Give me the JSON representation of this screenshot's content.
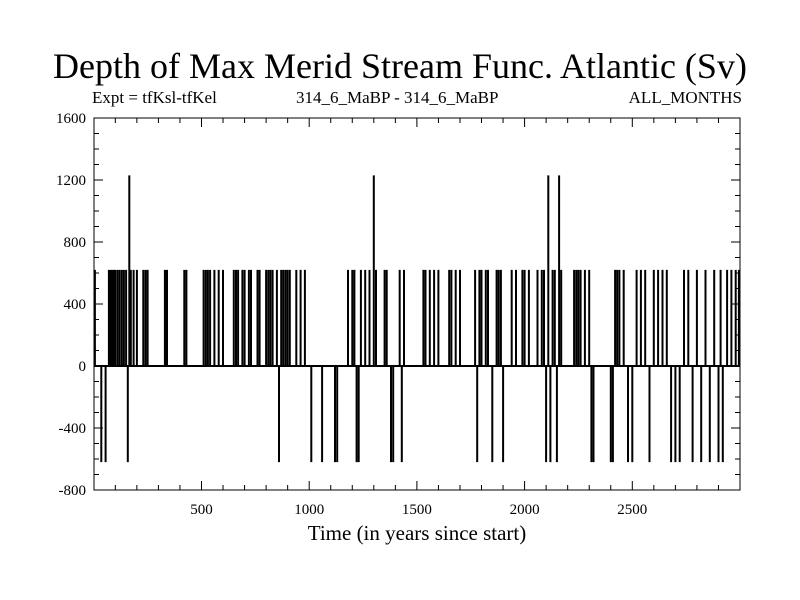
{
  "chart_data": {
    "type": "line",
    "title": "Depth of Max Merid Stream Func. Atlantic (Sv)",
    "subtitle_left": "Expt = tfKsl-tfKel",
    "subtitle_center": "314_6_MaBP - 314_6_MaBP",
    "subtitle_right": "ALL_MONTHS",
    "xlabel": "Time (in years since start)",
    "ylabel": "",
    "xlim": [
      1,
      3000
    ],
    "ylim": [
      -800,
      1600
    ],
    "x_ticks": [
      500,
      1000,
      1500,
      2000,
      2500
    ],
    "y_ticks": [
      -800,
      -400,
      0,
      400,
      800,
      1200,
      1600
    ],
    "series": [
      {
        "values_note": "",
        "spikes": [
          {
            "x": 5,
            "y": 620
          },
          {
            "x": 35,
            "y": -620
          },
          {
            "x": 55,
            "y": -620
          },
          {
            "x": 70,
            "y": 620
          },
          {
            "x": 78,
            "y": 620
          },
          {
            "x": 85,
            "y": 620
          },
          {
            "x": 92,
            "y": 620
          },
          {
            "x": 100,
            "y": 620
          },
          {
            "x": 110,
            "y": 620
          },
          {
            "x": 120,
            "y": 620
          },
          {
            "x": 130,
            "y": 620
          },
          {
            "x": 140,
            "y": 620
          },
          {
            "x": 150,
            "y": 620
          },
          {
            "x": 158,
            "y": -620
          },
          {
            "x": 165,
            "y": 1230
          },
          {
            "x": 172,
            "y": 620
          },
          {
            "x": 185,
            "y": 620
          },
          {
            "x": 200,
            "y": 620
          },
          {
            "x": 230,
            "y": 620
          },
          {
            "x": 240,
            "y": 620
          },
          {
            "x": 250,
            "y": 620
          },
          {
            "x": 330,
            "y": 620
          },
          {
            "x": 335,
            "y": 620
          },
          {
            "x": 340,
            "y": 620
          },
          {
            "x": 420,
            "y": 620
          },
          {
            "x": 430,
            "y": 620
          },
          {
            "x": 510,
            "y": 620
          },
          {
            "x": 520,
            "y": 620
          },
          {
            "x": 530,
            "y": 620
          },
          {
            "x": 540,
            "y": 620
          },
          {
            "x": 560,
            "y": 620
          },
          {
            "x": 580,
            "y": 620
          },
          {
            "x": 600,
            "y": 620
          },
          {
            "x": 650,
            "y": 620
          },
          {
            "x": 660,
            "y": 620
          },
          {
            "x": 670,
            "y": 620
          },
          {
            "x": 690,
            "y": 620
          },
          {
            "x": 700,
            "y": 620
          },
          {
            "x": 720,
            "y": 620
          },
          {
            "x": 730,
            "y": 620
          },
          {
            "x": 760,
            "y": 620
          },
          {
            "x": 770,
            "y": 620
          },
          {
            "x": 800,
            "y": 620
          },
          {
            "x": 810,
            "y": 620
          },
          {
            "x": 820,
            "y": 620
          },
          {
            "x": 830,
            "y": 620
          },
          {
            "x": 850,
            "y": 620
          },
          {
            "x": 860,
            "y": -620
          },
          {
            "x": 870,
            "y": 620
          },
          {
            "x": 880,
            "y": 620
          },
          {
            "x": 890,
            "y": 620
          },
          {
            "x": 900,
            "y": 620
          },
          {
            "x": 910,
            "y": 620
          },
          {
            "x": 940,
            "y": 620
          },
          {
            "x": 960,
            "y": 620
          },
          {
            "x": 980,
            "y": 620
          },
          {
            "x": 1010,
            "y": -620
          },
          {
            "x": 1060,
            "y": -620
          },
          {
            "x": 1120,
            "y": -620
          },
          {
            "x": 1130,
            "y": -620
          },
          {
            "x": 1180,
            "y": 620
          },
          {
            "x": 1200,
            "y": 620
          },
          {
            "x": 1210,
            "y": 620
          },
          {
            "x": 1220,
            "y": -620
          },
          {
            "x": 1230,
            "y": -620
          },
          {
            "x": 1240,
            "y": 620
          },
          {
            "x": 1260,
            "y": 620
          },
          {
            "x": 1280,
            "y": 620
          },
          {
            "x": 1300,
            "y": 1230
          },
          {
            "x": 1310,
            "y": 620
          },
          {
            "x": 1350,
            "y": 620
          },
          {
            "x": 1360,
            "y": 620
          },
          {
            "x": 1380,
            "y": -620
          },
          {
            "x": 1390,
            "y": -620
          },
          {
            "x": 1420,
            "y": 620
          },
          {
            "x": 1430,
            "y": -620
          },
          {
            "x": 1440,
            "y": 620
          },
          {
            "x": 1530,
            "y": 620
          },
          {
            "x": 1540,
            "y": 620
          },
          {
            "x": 1560,
            "y": 620
          },
          {
            "x": 1580,
            "y": 620
          },
          {
            "x": 1600,
            "y": 620
          },
          {
            "x": 1650,
            "y": 620
          },
          {
            "x": 1660,
            "y": 620
          },
          {
            "x": 1680,
            "y": 620
          },
          {
            "x": 1700,
            "y": 620
          },
          {
            "x": 1770,
            "y": 620
          },
          {
            "x": 1780,
            "y": -620
          },
          {
            "x": 1790,
            "y": 620
          },
          {
            "x": 1800,
            "y": 620
          },
          {
            "x": 1820,
            "y": 620
          },
          {
            "x": 1830,
            "y": 620
          },
          {
            "x": 1850,
            "y": -620
          },
          {
            "x": 1870,
            "y": 620
          },
          {
            "x": 1880,
            "y": 620
          },
          {
            "x": 1890,
            "y": 620
          },
          {
            "x": 1900,
            "y": -620
          },
          {
            "x": 1940,
            "y": 620
          },
          {
            "x": 1960,
            "y": 620
          },
          {
            "x": 1990,
            "y": 620
          },
          {
            "x": 2000,
            "y": 620
          },
          {
            "x": 2020,
            "y": 620
          },
          {
            "x": 2060,
            "y": 620
          },
          {
            "x": 2080,
            "y": 620
          },
          {
            "x": 2090,
            "y": 620
          },
          {
            "x": 2100,
            "y": -620
          },
          {
            "x": 2110,
            "y": 1230
          },
          {
            "x": 2120,
            "y": -620
          },
          {
            "x": 2130,
            "y": 620
          },
          {
            "x": 2140,
            "y": 620
          },
          {
            "x": 2150,
            "y": -620
          },
          {
            "x": 2160,
            "y": 1230
          },
          {
            "x": 2170,
            "y": 620
          },
          {
            "x": 2230,
            "y": 620
          },
          {
            "x": 2240,
            "y": 620
          },
          {
            "x": 2250,
            "y": 620
          },
          {
            "x": 2260,
            "y": 620
          },
          {
            "x": 2280,
            "y": 620
          },
          {
            "x": 2300,
            "y": 620
          },
          {
            "x": 2310,
            "y": -620
          },
          {
            "x": 2320,
            "y": -620
          },
          {
            "x": 2400,
            "y": -620
          },
          {
            "x": 2410,
            "y": -620
          },
          {
            "x": 2420,
            "y": 620
          },
          {
            "x": 2430,
            "y": 620
          },
          {
            "x": 2440,
            "y": 620
          },
          {
            "x": 2460,
            "y": 620
          },
          {
            "x": 2480,
            "y": -620
          },
          {
            "x": 2500,
            "y": -620
          },
          {
            "x": 2520,
            "y": 620
          },
          {
            "x": 2540,
            "y": 620
          },
          {
            "x": 2560,
            "y": 620
          },
          {
            "x": 2580,
            "y": -620
          },
          {
            "x": 2600,
            "y": 620
          },
          {
            "x": 2620,
            "y": 620
          },
          {
            "x": 2640,
            "y": 620
          },
          {
            "x": 2660,
            "y": 620
          },
          {
            "x": 2680,
            "y": -620
          },
          {
            "x": 2700,
            "y": -620
          },
          {
            "x": 2720,
            "y": -620
          },
          {
            "x": 2740,
            "y": 620
          },
          {
            "x": 2760,
            "y": 620
          },
          {
            "x": 2780,
            "y": -620
          },
          {
            "x": 2800,
            "y": 620
          },
          {
            "x": 2820,
            "y": -620
          },
          {
            "x": 2840,
            "y": 620
          },
          {
            "x": 2860,
            "y": -620
          },
          {
            "x": 2880,
            "y": 620
          },
          {
            "x": 2900,
            "y": -620
          },
          {
            "x": 2910,
            "y": 620
          },
          {
            "x": 2920,
            "y": -620
          },
          {
            "x": 2940,
            "y": 620
          },
          {
            "x": 2960,
            "y": 620
          },
          {
            "x": 2980,
            "y": 620
          },
          {
            "x": 2995,
            "y": 620
          }
        ]
      }
    ],
    "grid": false,
    "legend": "none",
    "line_color": "#000000"
  }
}
